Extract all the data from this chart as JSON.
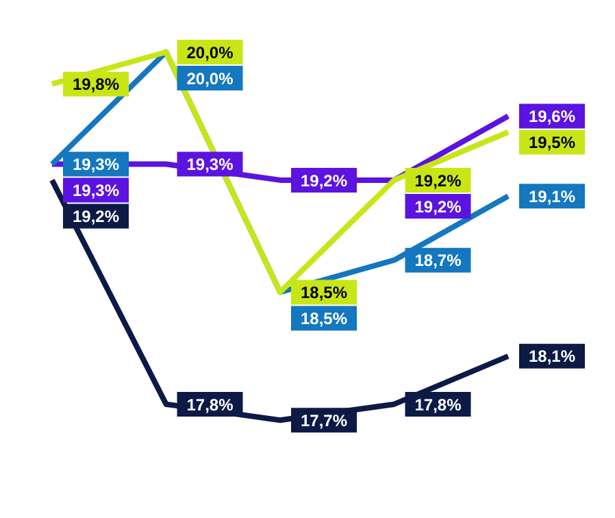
{
  "chart_data": {
    "type": "line",
    "categories": [
      null,
      null,
      null,
      null,
      null
    ],
    "legend": false,
    "marker": "none",
    "series": [
      {
        "color": "#c8e616",
        "values": [
          19.8,
          20.0,
          18.5,
          19.2,
          19.5
        ],
        "value_labels": [
          "19,8%",
          "20,0%",
          "18,5%",
          "19,2%",
          "19,5%"
        ]
      },
      {
        "color": "#1477bf",
        "values": [
          19.3,
          20.0,
          18.5,
          18.7,
          19.1
        ],
        "value_labels": [
          "19,3%",
          "20,0%",
          "18,5%",
          "18,7%",
          "19,1%"
        ]
      },
      {
        "color": "#5b13e0",
        "values": [
          19.3,
          19.3,
          19.2,
          19.2,
          19.6
        ],
        "value_labels": [
          "19,3%",
          "19,3%",
          "19,2%",
          "19,2%",
          "19,6%"
        ]
      },
      {
        "color": "#0c1a45",
        "values": [
          19.2,
          17.8,
          17.7,
          17.8,
          18.1
        ],
        "value_labels": [
          "19,2%",
          "17,8%",
          "17,7%",
          "17,8%",
          "18,1%"
        ]
      }
    ]
  }
}
